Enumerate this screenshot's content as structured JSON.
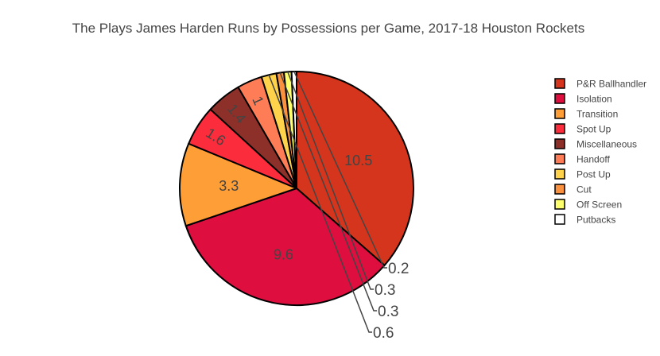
{
  "chart_data": {
    "type": "pie",
    "title": "The Plays James Harden Runs by Possessions per Game, 2017-18 Houston Rockets",
    "legend_position": "right",
    "slices": [
      {
        "label": "P&R Ballhandler",
        "value": 10.5,
        "color": "#d4351c",
        "display": "10.5"
      },
      {
        "label": "Isolation",
        "value": 9.6,
        "color": "#de0f3f",
        "display": "9.6"
      },
      {
        "label": "Transition",
        "value": 3.3,
        "color": "#fd9f36",
        "display": "3.3"
      },
      {
        "label": "Spot Up",
        "value": 1.6,
        "color": "#fb2c3b",
        "display": "1.6"
      },
      {
        "label": "Miscellaneous",
        "value": 1.4,
        "color": "#8d3029",
        "display": "1.4"
      },
      {
        "label": "Handoff",
        "value": 1.0,
        "color": "#fe7d57",
        "display": "1"
      },
      {
        "label": "Post Up",
        "value": 0.6,
        "color": "#fed24b",
        "display": "0.6"
      },
      {
        "label": "Cut",
        "value": 0.3,
        "color": "#fa913f",
        "display": "0.3"
      },
      {
        "label": "Off Screen",
        "value": 0.3,
        "color": "#feff6c",
        "display": "0.3"
      },
      {
        "label": "Putbacks",
        "value": 0.2,
        "color": "#ffffff",
        "display": "0.2"
      }
    ]
  }
}
